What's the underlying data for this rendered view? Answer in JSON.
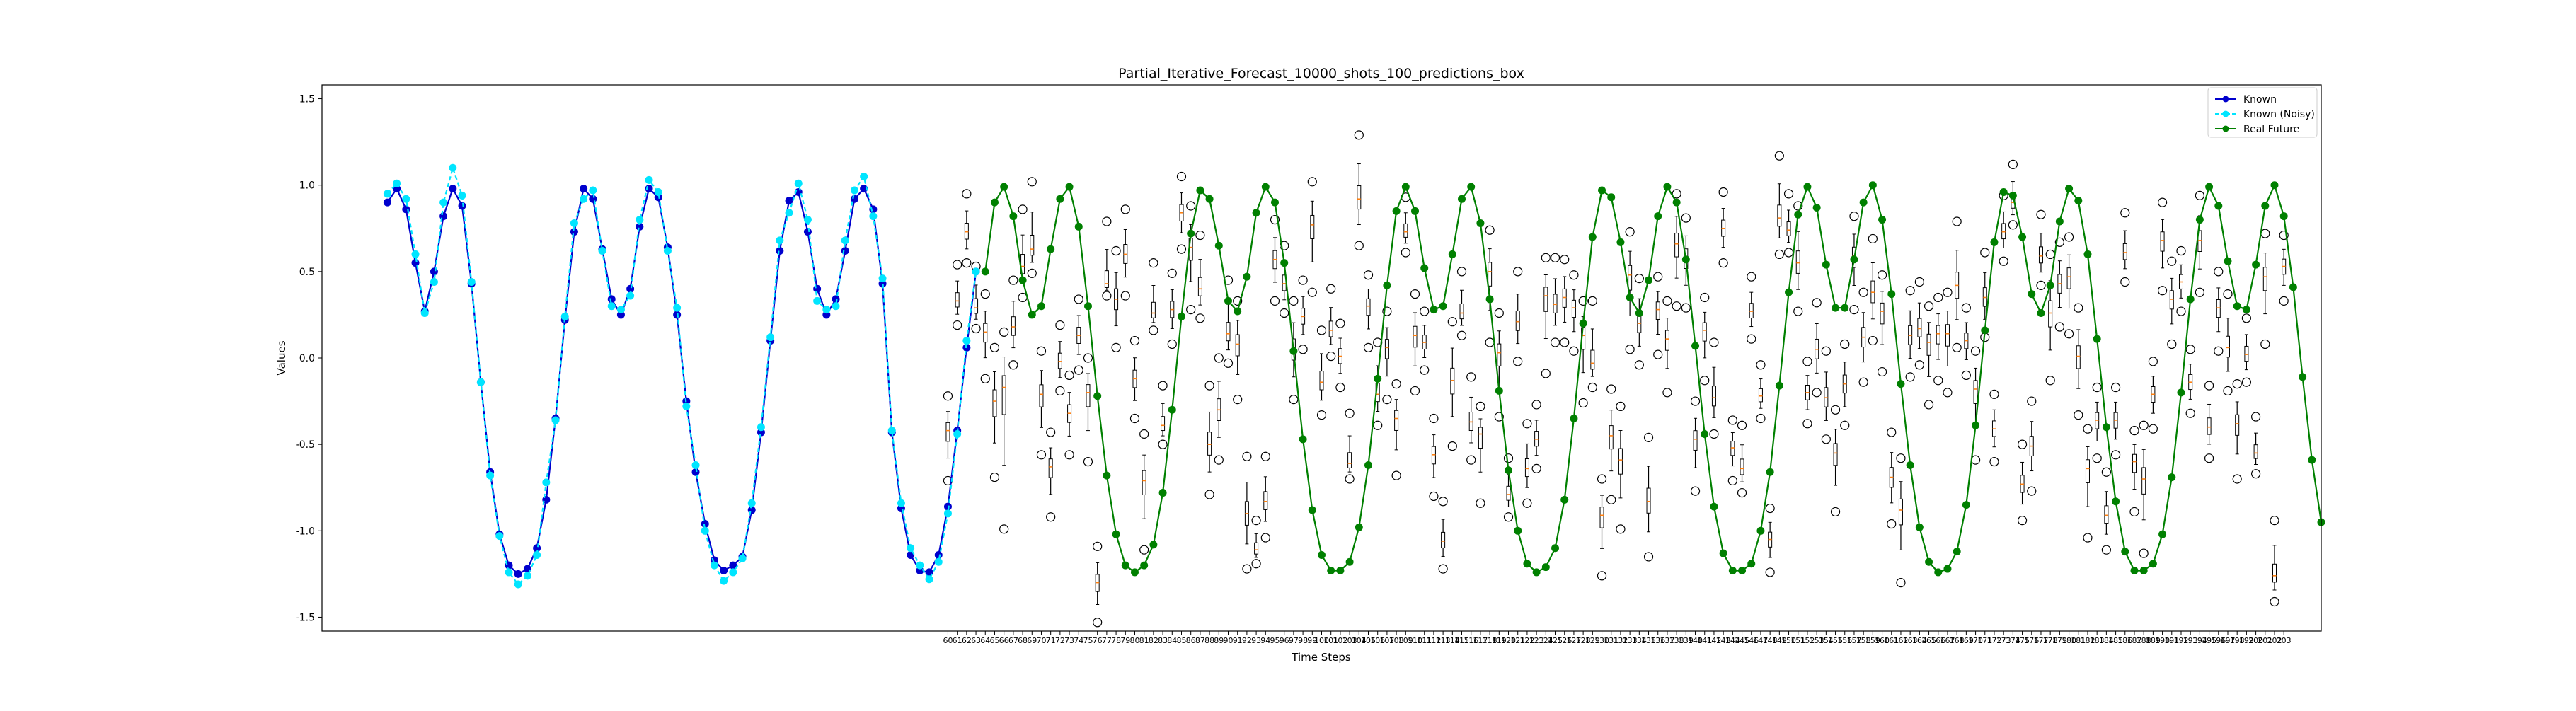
{
  "chart_data": {
    "type": "line",
    "title": "Partial_Iterative_Forecast_10000_shots_100_predictions_box",
    "xlabel": "Time Steps",
    "ylabel": "Values",
    "ylim": [
      -1.58,
      1.58
    ],
    "yticks": [
      "-1.5",
      "-1.0",
      "-0.5",
      "0.0",
      "0.5",
      "1.0",
      "1.5"
    ],
    "yticks_values": [
      -1.5,
      -1.0,
      -0.5,
      0.0,
      0.5,
      1.0,
      1.5
    ],
    "xlim": [
      -7,
      207
    ],
    "legend_position": "top-right",
    "grid": false,
    "x_tick_start": 60,
    "x_tick_end": 203,
    "colors": {
      "known": "#0000cd",
      "known_noisy": "#00e5ff",
      "real_future": "#008000",
      "box_median": "#ff7f0e",
      "box": "#000000"
    },
    "series": [
      {
        "name": "Known",
        "x_start": 0,
        "values": [
          0.9,
          0.98,
          0.86,
          0.55,
          0.27,
          0.5,
          0.82,
          0.98,
          0.88,
          0.43,
          -0.14,
          -0.66,
          -1.02,
          -1.2,
          -1.25,
          -1.22,
          -1.1,
          -0.82,
          -0.35,
          0.22,
          0.73,
          0.98,
          0.92,
          0.63,
          0.34,
          0.25,
          0.4,
          0.76,
          0.98,
          0.93,
          0.64,
          0.25,
          -0.25,
          -0.66,
          -0.96,
          -1.17,
          -1.23,
          -1.2,
          -1.15,
          -0.88,
          -0.43,
          0.1,
          0.62,
          0.91,
          0.96,
          0.73,
          0.4,
          0.25,
          0.34,
          0.62,
          0.92,
          0.98,
          0.86,
          0.43,
          -0.43,
          -0.87,
          -1.14,
          -1.23,
          -1.24,
          -1.14,
          -0.86,
          -0.42,
          0.06,
          0.5
        ]
      },
      {
        "name": "Known (Noisy)",
        "x_start": 0,
        "values": [
          0.95,
          1.01,
          0.92,
          0.6,
          0.26,
          0.44,
          0.9,
          1.1,
          0.94,
          0.44,
          -0.14,
          -0.68,
          -1.03,
          -1.24,
          -1.31,
          -1.26,
          -1.14,
          -0.72,
          -0.36,
          0.24,
          0.78,
          0.92,
          0.97,
          0.62,
          0.3,
          0.28,
          0.36,
          0.8,
          1.03,
          0.96,
          0.62,
          0.29,
          -0.28,
          -0.62,
          -1.0,
          -1.2,
          -1.29,
          -1.24,
          -1.16,
          -0.84,
          -0.4,
          0.12,
          0.68,
          0.84,
          1.01,
          0.8,
          0.33,
          0.28,
          0.3,
          0.68,
          0.97,
          1.05,
          0.82,
          0.46,
          -0.42,
          -0.84,
          -1.1,
          -1.2,
          -1.28,
          -1.18,
          -0.9,
          -0.44,
          0.1,
          0.5
        ]
      },
      {
        "name": "Real Future",
        "x_start": 64,
        "values": [
          0.5,
          0.9,
          0.99,
          0.82,
          0.45,
          0.25,
          0.3,
          0.63,
          0.92,
          0.99,
          0.76,
          0.3,
          -0.22,
          -0.68,
          -1.02,
          -1.2,
          -1.24,
          -1.2,
          -1.08,
          -0.78,
          -0.3,
          0.24,
          0.72,
          0.97,
          0.92,
          0.65,
          0.33,
          0.27,
          0.47,
          0.84,
          0.99,
          0.9,
          0.55,
          0.04,
          -0.47,
          -0.88,
          -1.14,
          -1.23,
          -1.23,
          -1.18,
          -0.98,
          -0.62,
          -0.12,
          0.42,
          0.85,
          0.99,
          0.85,
          0.52,
          0.28,
          0.3,
          0.6,
          0.92,
          0.99,
          0.78,
          0.34,
          -0.19,
          -0.65,
          -1.0,
          -1.19,
          -1.24,
          -1.21,
          -1.1,
          -0.82,
          -0.35,
          0.2,
          0.7,
          0.97,
          0.93,
          0.67,
          0.35,
          0.26,
          0.45,
          0.82,
          0.99,
          0.9,
          0.57,
          0.07,
          -0.44,
          -0.86,
          -1.13,
          -1.23,
          -1.23,
          -1.19,
          -1.0,
          -0.66,
          -0.16,
          0.38,
          0.83,
          0.99,
          0.87,
          0.54,
          0.29,
          0.29,
          0.57,
          0.9,
          1.0,
          0.8,
          0.37,
          -0.15,
          -0.62,
          -0.98,
          -1.18,
          -1.24,
          -1.22,
          -1.12,
          -0.85,
          -0.39,
          0.16,
          0.67,
          0.96,
          0.94,
          0.7,
          0.37,
          0.26,
          0.42,
          0.79,
          0.98,
          0.91,
          0.6,
          0.11,
          -0.4,
          -0.83,
          -1.12,
          -1.23,
          -1.23,
          -1.19,
          -1.02,
          -0.69,
          -0.2,
          0.34,
          0.8,
          0.99,
          0.88,
          0.56,
          0.3,
          0.28,
          0.54,
          0.88,
          1.0,
          0.82,
          0.41,
          -0.11,
          -0.59,
          -0.95
        ]
      }
    ],
    "boxes": {
      "x_start": 60,
      "medians": [
        -0.42,
        0.33,
        0.73,
        0.29,
        0.15,
        -0.25,
        -0.17,
        0.18,
        0.53,
        0.63,
        -0.21,
        -0.63,
        -0.02,
        -0.32,
        0.13,
        -0.2,
        -1.3,
        0.43,
        0.34,
        0.6,
        -0.12,
        -0.71,
        0.26,
        -0.39,
        0.28,
        0.84,
        0.64,
        0.4,
        -0.5,
        -0.3,
        0.14,
        0.08,
        -0.9,
        -1.11,
        -0.83,
        0.57,
        0.43,
        0.05,
        0.24,
        0.77,
        -0.14,
        0.16,
        0.01,
        -0.61,
        0.92,
        0.3,
        -0.21,
        0.06,
        -0.35,
        0.73,
        0.13,
        0.09,
        -0.56,
        -1.06,
        -0.13,
        0.26,
        -0.37,
        -0.44,
        0.5,
        0.03,
        -0.79,
        0.21,
        -0.64,
        -0.47,
        0.36,
        0.31,
        0.35,
        0.29,
        0.13,
        -0.03,
        -0.91,
        -0.45,
        -0.59,
        0.48,
        0.2,
        -0.83,
        0.28,
        0.11,
        0.66,
        0.58,
        -0.47,
        0.16,
        -0.23,
        0.75,
        -0.52,
        -0.64,
        0.27,
        -0.22,
        -1.05,
        0.81,
        0.74,
        0.55,
        -0.2,
        0.05,
        -0.23,
        -0.55,
        -0.15,
        0.59,
        0.12,
        0.38,
        0.27,
        -0.69,
        -0.88,
        0.13,
        0.17,
        0.09,
        0.14,
        0.14,
        0.42,
        0.1,
        -0.18,
        0.35,
        -0.41,
        0.73,
        0.9,
        -0.73,
        -0.51,
        0.59,
        0.26,
        0.43,
        0.47,
        0.01,
        -0.64,
        -0.36,
        -0.91,
        -0.36,
        0.61,
        -0.6,
        -0.7,
        -0.21,
        0.68,
        0.34,
        0.44,
        -0.14,
        0.68,
        -0.4,
        0.29,
        0.06,
        -0.38,
        0.02,
        -0.55,
        0.47,
        -1.26,
        0.53
      ],
      "outliers_lo": [
        -0.71,
        0.19,
        0.55,
        0.17,
        -0.12,
        -0.69,
        -0.99,
        -0.04,
        0.35,
        0.49,
        -0.56,
        -0.92,
        -0.19,
        -0.56,
        -0.07,
        -0.6,
        -1.53,
        0.36,
        0.06,
        0.36,
        -0.35,
        -1.11,
        0.16,
        -0.5,
        0.08,
        0.63,
        0.28,
        0.23,
        -0.79,
        -0.59,
        -0.03,
        -0.24,
        -1.22,
        -1.19,
        -1.04,
        0.33,
        0.26,
        -0.24,
        0.05,
        0.38,
        -0.33,
        0.01,
        -0.17,
        -0.7,
        0.65,
        0.06,
        -0.39,
        -0.24,
        -0.68,
        0.61,
        -0.19,
        -0.07,
        -0.8,
        -1.22,
        -0.51,
        0.13,
        -0.59,
        -0.84,
        0.09,
        -0.34,
        -0.92,
        -0.02,
        -0.84,
        -0.64,
        -0.09,
        0.09,
        0.09,
        0.04,
        -0.26,
        -0.17,
        -1.26,
        -0.82,
        -0.99,
        0.05,
        -0.04,
        -1.15,
        0.02,
        -0.2,
        0.3,
        0.29,
        -0.77,
        -0.13,
        -0.44,
        0.55,
        -0.71,
        -0.78,
        0.11,
        -0.35,
        -1.24,
        0.6,
        0.61,
        0.27,
        -0.38,
        -0.2,
        -0.47,
        -0.89,
        -0.39,
        0.28,
        -0.14,
        0.1,
        -0.08,
        -0.96,
        -1.3,
        -0.11,
        -0.04,
        -0.27,
        -0.13,
        -0.2,
        0.06,
        -0.1,
        -0.59,
        0.12,
        -0.6,
        0.56,
        0.77,
        -0.94,
        -0.77,
        0.42,
        -0.13,
        0.18,
        0.14,
        -0.33,
        -1.04,
        -0.58,
        -1.11,
        -0.56,
        0.44,
        -0.89,
        -1.13,
        -0.41,
        0.39,
        0.08,
        0.27,
        -0.32,
        0.38,
        -0.58,
        0.04,
        -0.19,
        -0.7,
        -0.14,
        -0.67,
        0.08,
        -1.41,
        0.33
      ],
      "outliers_hi": [
        -0.22,
        0.54,
        0.95,
        0.53,
        0.37,
        0.06,
        0.15,
        0.45,
        0.86,
        1.02,
        0.04,
        -0.43,
        0.19,
        -0.1,
        0.34,
        0.0,
        -1.09,
        0.79,
        0.62,
        0.86,
        0.1,
        -0.44,
        0.55,
        -0.16,
        0.49,
        1.05,
        0.88,
        0.71,
        -0.16,
        0.0,
        0.45,
        0.33,
        -0.57,
        -0.94,
        -0.57,
        0.8,
        0.65,
        0.33,
        0.45,
        1.02,
        0.16,
        0.4,
        0.2,
        -0.32,
        1.29,
        0.48,
        0.09,
        0.27,
        -0.15,
        0.93,
        0.37,
        0.27,
        -0.35,
        -0.83,
        0.21,
        0.5,
        -0.11,
        -0.28,
        0.74,
        0.26,
        -0.58,
        0.5,
        -0.38,
        -0.27,
        0.58,
        0.58,
        0.57,
        0.48,
        0.33,
        0.33,
        -0.7,
        -0.18,
        -0.28,
        0.73,
        0.46,
        -0.46,
        0.47,
        0.33,
        0.95,
        0.81,
        -0.25,
        0.35,
        0.09,
        0.96,
        -0.36,
        -0.39,
        0.47,
        -0.04,
        -0.87,
        1.17,
        0.95,
        0.88,
        -0.02,
        0.32,
        0.04,
        -0.3,
        0.08,
        0.82,
        0.38,
        0.69,
        0.48,
        -0.43,
        -0.58,
        0.39,
        0.44,
        0.3,
        0.35,
        0.38,
        0.79,
        0.29,
        0.04,
        0.61,
        -0.21,
        0.94,
        1.12,
        -0.5,
        -0.25,
        0.83,
        0.6,
        0.67,
        0.7,
        0.29,
        -0.41,
        -0.17,
        -0.66,
        -0.17,
        0.84,
        -0.42,
        -0.39,
        -0.02,
        0.9,
        0.56,
        0.62,
        0.05,
        0.94,
        -0.16,
        0.5,
        0.37,
        -0.15,
        0.23,
        -0.34,
        0.72,
        -0.94,
        0.71
      ]
    }
  }
}
